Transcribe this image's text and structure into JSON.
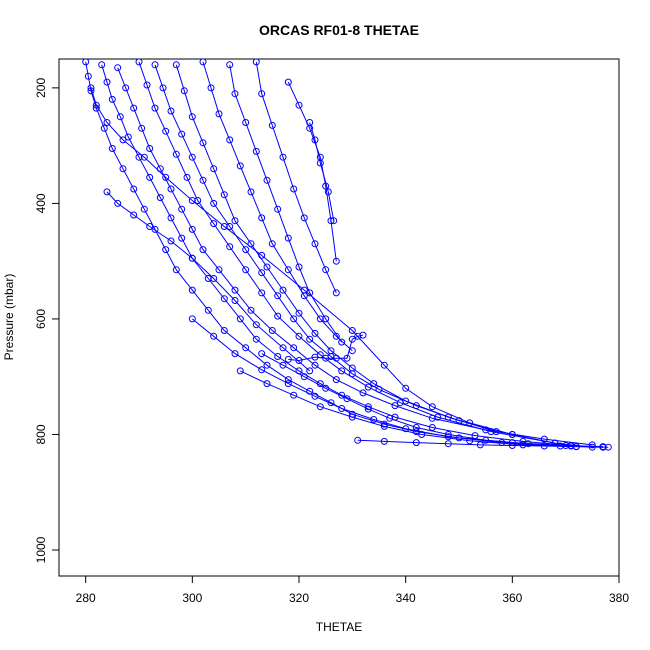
{
  "chart_data": {
    "type": "scatter",
    "title": "ORCAS RF01-8 THETAE",
    "xlabel": "THETAE",
    "ylabel": "Pressure (mbar)",
    "xlim": [
      275,
      380
    ],
    "ylim": [
      1045,
      150
    ],
    "y_reversed": true,
    "x_ticks": [
      280,
      300,
      320,
      340,
      360,
      380
    ],
    "y_ticks": [
      200,
      400,
      600,
      800,
      1000
    ],
    "grid": false,
    "legend": "none",
    "marker": "open-circle",
    "color": "#0000ff",
    "series": [
      {
        "x": [
          280,
          280.5,
          281,
          282,
          283.5,
          285,
          287,
          289,
          291,
          293,
          295,
          297,
          300,
          303,
          306,
          310,
          314,
          318,
          322,
          326,
          330,
          336,
          342,
          350,
          360,
          370,
          377
        ],
        "y": [
          155,
          180,
          205,
          235,
          270,
          305,
          340,
          375,
          410,
          445,
          480,
          515,
          550,
          585,
          620,
          650,
          680,
          705,
          725,
          745,
          765,
          782,
          795,
          806,
          814,
          819,
          821
        ]
      },
      {
        "x": [
          283,
          284,
          285,
          286.5,
          288,
          290,
          292,
          294,
          296,
          298,
          300,
          303,
          306,
          309,
          312,
          316,
          320,
          324,
          328,
          333,
          338,
          345,
          353,
          362,
          371
        ],
        "y": [
          160,
          190,
          220,
          250,
          285,
          320,
          355,
          390,
          425,
          460,
          495,
          530,
          565,
          600,
          635,
          665,
          690,
          712,
          732,
          752,
          770,
          788,
          802,
          812,
          819
        ]
      },
      {
        "x": [
          286,
          287.5,
          289,
          290.5,
          292,
          294,
          296,
          298,
          300,
          302,
          305,
          308,
          311,
          315,
          319,
          323,
          327,
          332,
          338,
          345,
          355,
          366,
          375
        ],
        "y": [
          165,
          200,
          235,
          270,
          305,
          340,
          375,
          410,
          445,
          480,
          515,
          550,
          585,
          620,
          650,
          680,
          705,
          728,
          750,
          772,
          792,
          808,
          818
        ]
      },
      {
        "x": [
          290,
          291.5,
          293,
          295,
          297,
          299,
          301,
          304,
          307,
          310,
          313,
          316,
          320,
          324,
          328,
          333,
          339,
          346,
          356,
          368
        ],
        "y": [
          155,
          195,
          235,
          275,
          315,
          355,
          395,
          435,
          475,
          515,
          555,
          595,
          630,
          662,
          690,
          718,
          745,
          770,
          795,
          815
        ]
      },
      {
        "x": [
          293,
          294.5,
          296,
          298,
          300,
          302,
          304,
          307,
          310,
          313,
          316,
          319,
          322,
          326,
          330,
          335,
          342,
          350,
          360
        ],
        "y": [
          160,
          200,
          240,
          280,
          320,
          360,
          400,
          440,
          480,
          520,
          560,
          600,
          635,
          665,
          695,
          722,
          750,
          776,
          800
        ]
      },
      {
        "x": [
          297,
          298.5,
          300,
          302,
          304,
          306,
          308,
          311,
          314,
          317,
          320,
          323,
          326,
          330,
          334,
          340,
          348,
          357
        ],
        "y": [
          160,
          205,
          250,
          295,
          340,
          385,
          430,
          470,
          510,
          550,
          590,
          625,
          655,
          685,
          712,
          742,
          770,
          795
        ]
      },
      {
        "x": [
          302,
          303.5,
          305,
          307,
          309,
          311,
          313,
          315,
          318,
          321,
          324,
          327,
          330
        ],
        "y": [
          155,
          200,
          245,
          290,
          335,
          380,
          425,
          470,
          515,
          560,
          600,
          630,
          655
        ]
      },
      {
        "x": [
          307,
          308,
          310,
          312,
          314,
          316,
          318,
          320,
          322,
          325,
          328
        ],
        "y": [
          160,
          210,
          260,
          310,
          360,
          410,
          460,
          510,
          555,
          600,
          640
        ]
      },
      {
        "x": [
          312,
          313,
          315,
          317,
          319,
          321,
          323,
          325,
          327
        ],
        "y": [
          155,
          210,
          265,
          320,
          375,
          425,
          470,
          515,
          555
        ]
      },
      {
        "x": [
          318,
          320,
          322,
          324,
          325,
          326,
          327
        ],
        "y": [
          190,
          230,
          270,
          320,
          370,
          430,
          500
        ]
      },
      {
        "x": [
          322,
          323,
          324,
          325.5,
          326.5
        ],
        "y": [
          260,
          290,
          330,
          380,
          430
        ]
      },
      {
        "x": [
          281,
          282,
          284,
          287,
          291,
          295,
          300,
          306,
          313,
          321,
          330,
          336,
          340,
          345,
          352,
          360,
          368,
          375
        ],
        "y": [
          200,
          230,
          260,
          290,
          320,
          355,
          395,
          440,
          490,
          550,
          620,
          680,
          720,
          752,
          780,
          800,
          815,
          822
        ]
      },
      {
        "x": [
          300,
          304,
          308,
          313,
          318,
          323,
          328,
          334,
          340,
          348,
          358,
          369,
          378
        ],
        "y": [
          600,
          630,
          660,
          688,
          712,
          734,
          755,
          774,
          790,
          804,
          814,
          820,
          822
        ]
      },
      {
        "x": [
          309,
          314,
          319,
          324,
          330,
          336,
          343,
          352,
          362,
          372
        ],
        "y": [
          690,
          712,
          732,
          752,
          770,
          786,
          800,
          811,
          818,
          821
        ]
      },
      {
        "x": [
          313,
          317,
          321,
          325,
          329,
          333,
          337,
          342,
          348,
          355,
          363,
          371,
          377
        ],
        "y": [
          660,
          680,
          700,
          720,
          738,
          756,
          772,
          788,
          800,
          810,
          816,
          820,
          822
        ]
      },
      {
        "x": [
          331,
          336,
          342,
          348,
          354,
          360,
          366,
          372,
          377
        ],
        "y": [
          810,
          812,
          814,
          816,
          818,
          819,
          820,
          821,
          822
        ]
      },
      {
        "x": [
          318,
          320,
          323,
          325,
          327,
          329,
          330,
          331,
          332
        ],
        "y": [
          670,
          672,
          666,
          668,
          668,
          668,
          635,
          630,
          628
        ]
      },
      {
        "x": [
          284,
          286,
          289,
          292,
          296,
          300,
          304,
          308,
          312,
          317,
          322
        ],
        "y": [
          380,
          400,
          420,
          440,
          465,
          495,
          530,
          568,
          610,
          650,
          690
        ]
      }
    ]
  }
}
